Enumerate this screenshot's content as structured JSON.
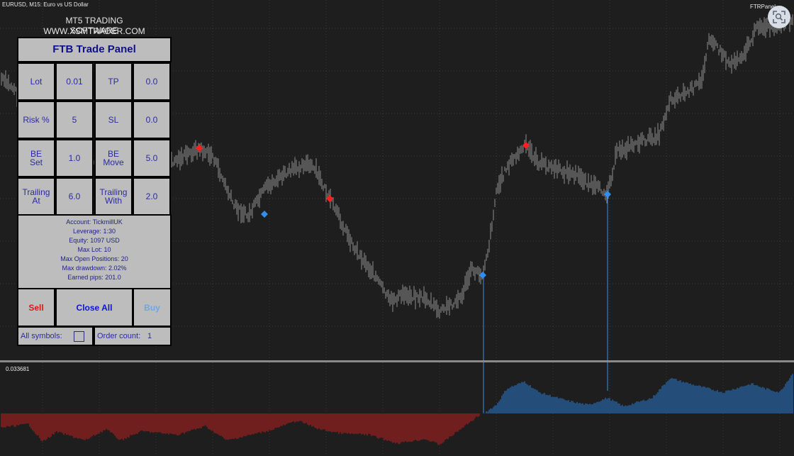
{
  "window": {
    "title": "EURUSD, M15:  Euro vs US Dollar",
    "plugin_label": "FTRPanel"
  },
  "branding": {
    "line1": "MT5 TRADING SOFTWARE",
    "line2": "WWW.XSMTRADER.COM"
  },
  "panel": {
    "title": "FTB Trade Panel",
    "rows": [
      [
        {
          "label": "Lot",
          "value": "0.01"
        },
        {
          "label": "TP",
          "value": "0.0"
        }
      ],
      [
        {
          "label": "Risk %",
          "value": "5"
        },
        {
          "label": "SL",
          "value": "0.0"
        }
      ],
      [
        {
          "label": "BE\nSet",
          "value": "1.0"
        },
        {
          "label": "BE\nMove",
          "value": "5.0"
        }
      ],
      [
        {
          "label": "Trailing\nAt",
          "value": "6.0"
        },
        {
          "label": "Trailing\nWith",
          "value": "2.0"
        }
      ]
    ],
    "info": [
      "Account: TickmillUK",
      "Leverage: 1:30",
      "Equity: 1097 USD",
      "Max Lot: 10",
      "Max Open Positions: 20",
      "Max drawdown: 2.02%",
      "Earned pips: 201.0"
    ],
    "buttons": {
      "sell": "Sell",
      "close_all": "Close All",
      "buy": "Buy"
    },
    "footer": {
      "all_symbols_label": "All symbols:",
      "order_count_label": "Order count:",
      "order_count_value": "1"
    }
  },
  "indicator": {
    "value_label": "0.033681"
  },
  "colors": {
    "candle": "#8e8e8e",
    "sell_marker": "#ff1f1f",
    "buy_marker": "#2e8ff0",
    "hist_negative": "#c41e1e",
    "hist_positive": "#2a7fd4",
    "vline": "#3c8ee6"
  },
  "icons": {
    "zoom": "zoom-scan-icon"
  }
}
